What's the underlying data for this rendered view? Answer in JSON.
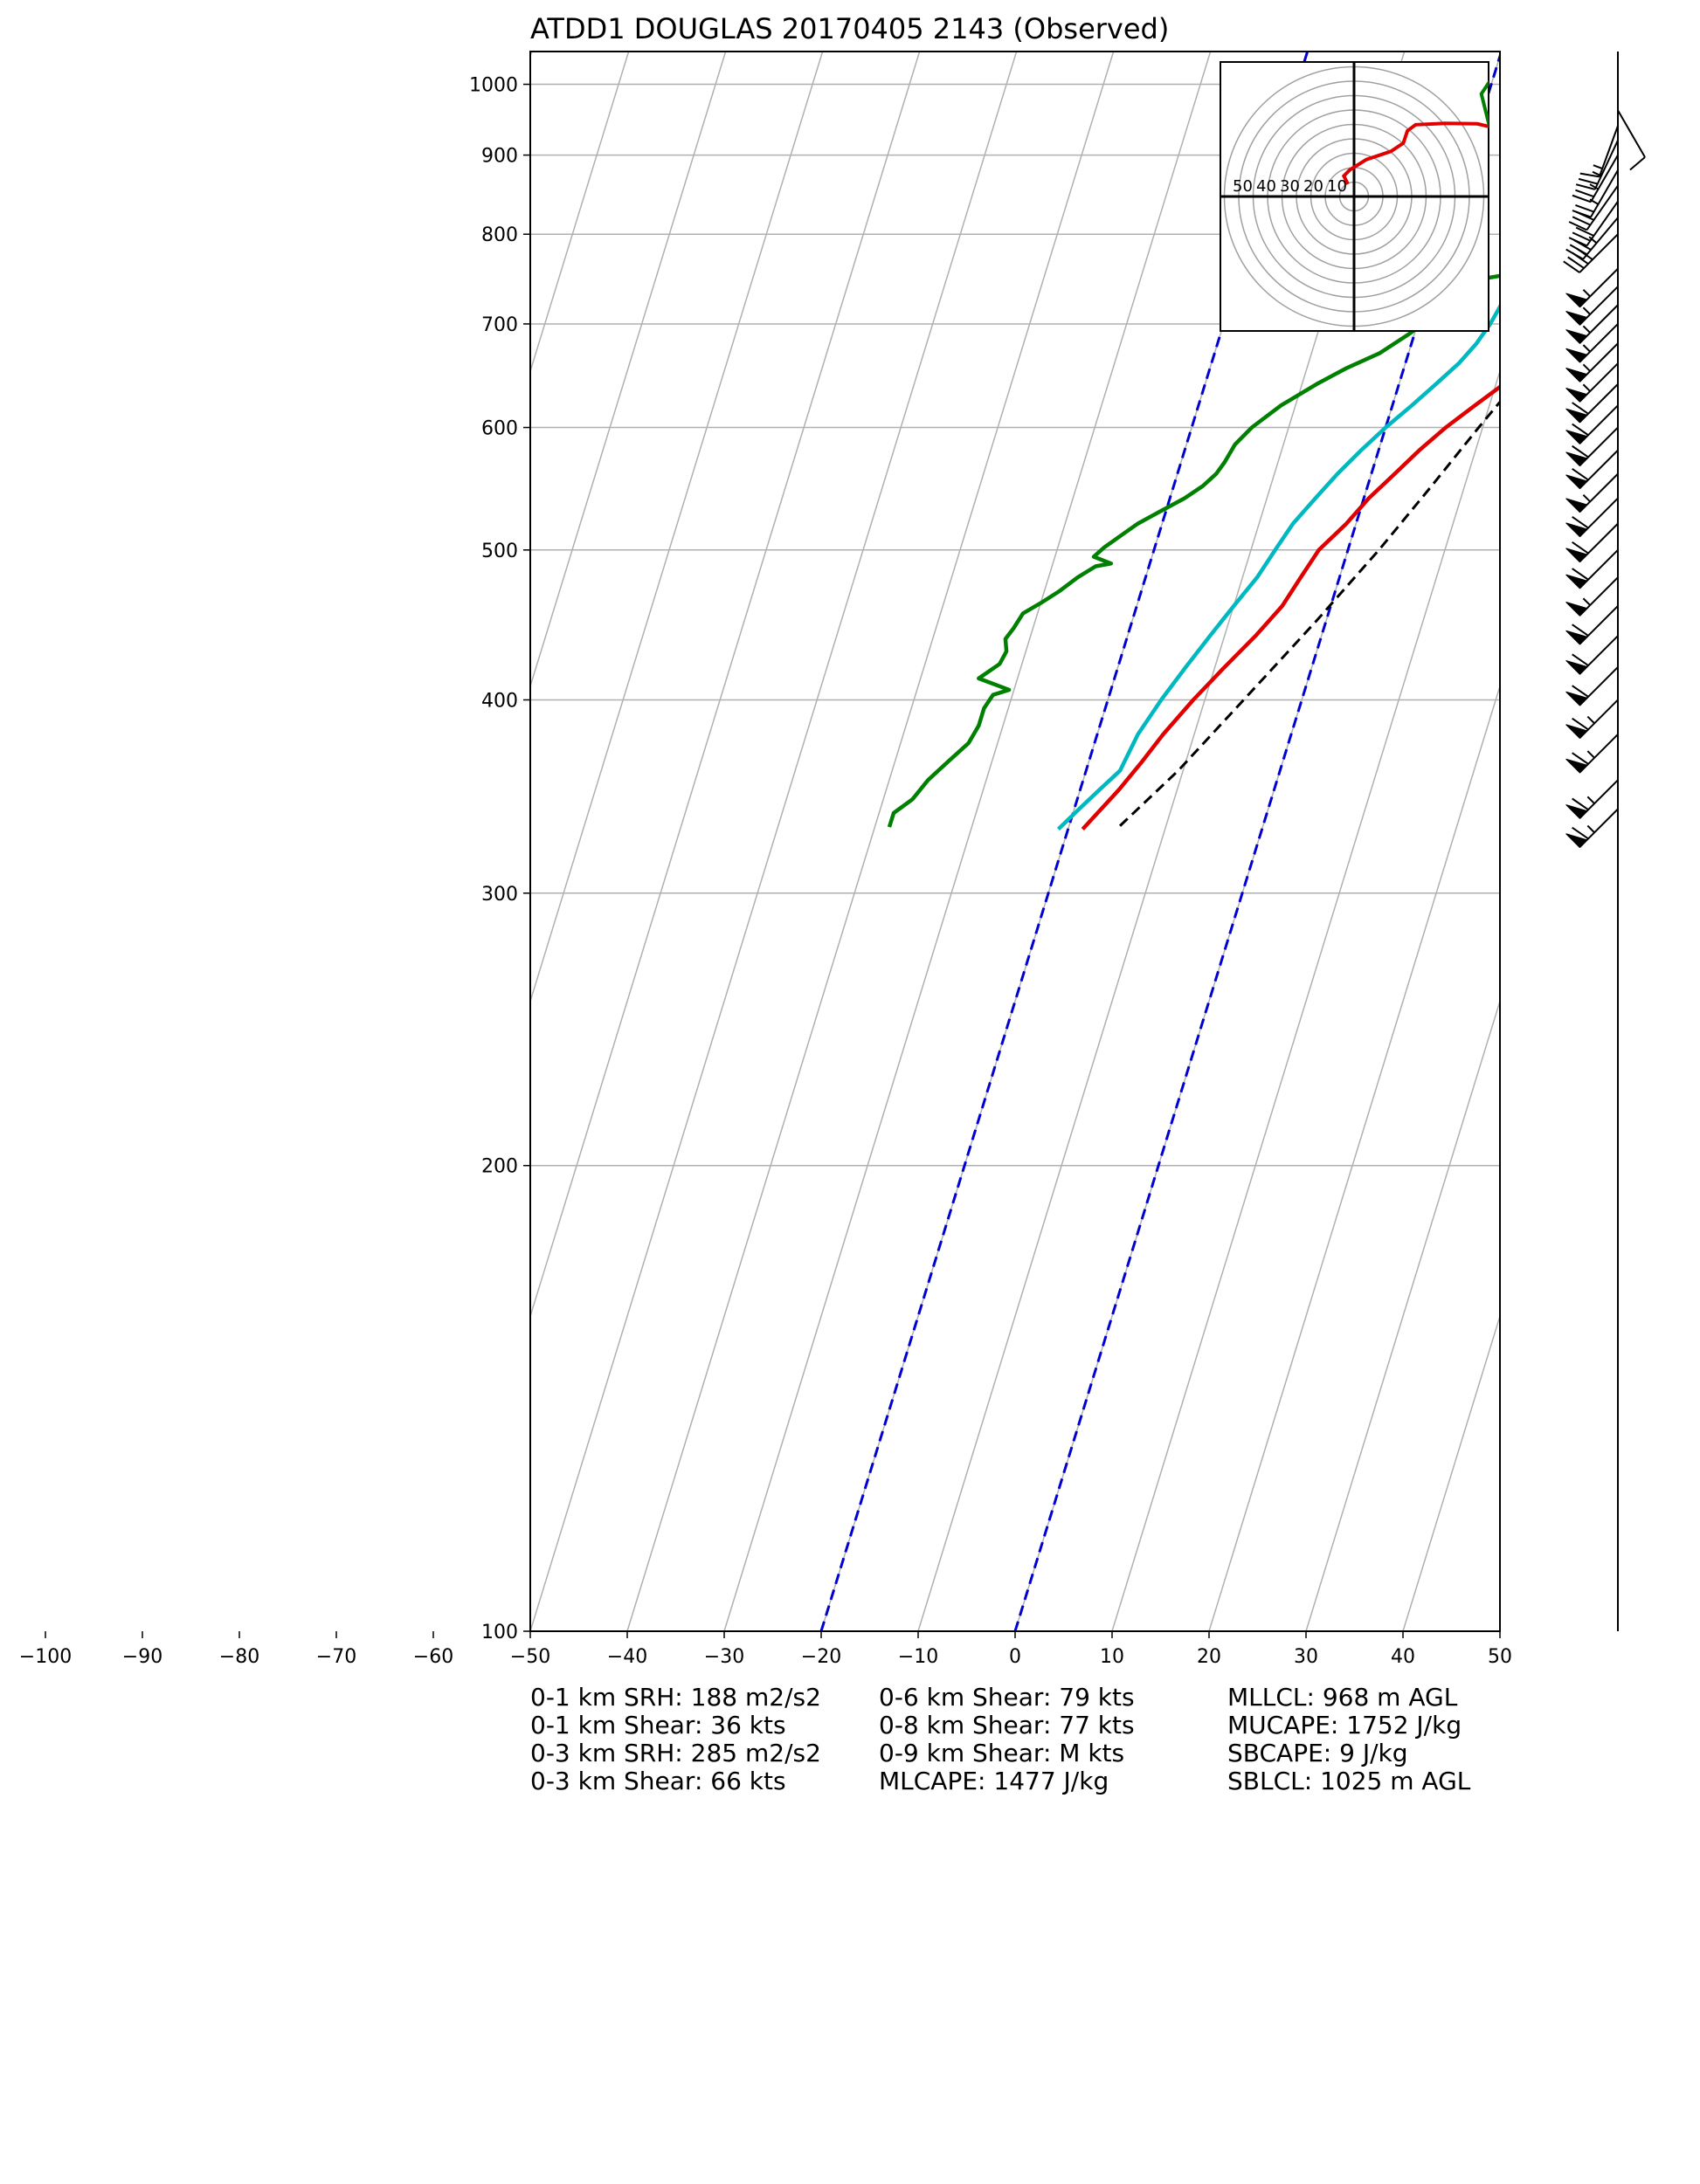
{
  "chart_data": {
    "type": "skew-t",
    "title": "ATDD1 DOUGLAS 20170405 2143   (Observed)",
    "x_ticks": [
      -100,
      -90,
      -80,
      -70,
      -60,
      -50,
      -40,
      -30,
      -20,
      -10,
      0,
      10,
      20,
      30,
      40,
      50
    ],
    "xlim": [
      -50,
      50
    ],
    "y_ticks": [
      100,
      200,
      300,
      400,
      500,
      600,
      700,
      800,
      900,
      1000
    ],
    "ylim": [
      1050,
      100
    ],
    "y_scale": "log",
    "grid": true,
    "series": [
      {
        "color": "#e00000",
        "style": "solid",
        "points": [
          [
            970,
            22.5
          ],
          [
            962,
            26
          ],
          [
            950,
            24
          ],
          [
            925,
            23
          ],
          [
            900,
            21.5
          ],
          [
            875,
            20
          ],
          [
            850,
            18.5
          ],
          [
            825,
            17
          ],
          [
            800,
            15.5
          ],
          [
            775,
            14
          ],
          [
            760,
            13.2
          ],
          [
            752,
            12
          ],
          [
            748,
            13
          ],
          [
            742,
            14.5
          ],
          [
            735,
            15
          ],
          [
            720,
            15
          ],
          [
            700,
            14
          ],
          [
            680,
            13.5
          ],
          [
            660,
            12.5
          ],
          [
            640,
            10.8
          ],
          [
            620,
            8.5
          ],
          [
            600,
            6.2
          ],
          [
            580,
            4.2
          ],
          [
            560,
            2.4
          ],
          [
            540,
            0.5
          ],
          [
            520,
            -1
          ],
          [
            500,
            -3
          ],
          [
            480,
            -4
          ],
          [
            460,
            -5
          ],
          [
            440,
            -6.8
          ],
          [
            420,
            -9
          ],
          [
            400,
            -11.2
          ],
          [
            380,
            -13.2
          ],
          [
            365,
            -14.5
          ],
          [
            350,
            -16
          ],
          [
            330,
            -18.5
          ]
        ]
      },
      {
        "color": "#e00000",
        "style": "dashed",
        "points": [
          [
            962,
            26
          ],
          [
            900,
            22
          ],
          [
            850,
            19
          ],
          [
            800,
            16.5
          ],
          [
            770,
            15.5
          ],
          [
            755,
            15
          ],
          [
            740,
            16
          ],
          [
            720,
            15.5
          ],
          [
            700,
            15
          ],
          [
            680,
            14
          ],
          [
            660,
            13
          ],
          [
            640,
            11
          ]
        ]
      },
      {
        "color": "#00b8c0",
        "style": "solid",
        "points": [
          [
            962,
            21.8
          ],
          [
            950,
            21
          ],
          [
            925,
            20.5
          ],
          [
            900,
            19.3
          ],
          [
            875,
            17.8
          ],
          [
            850,
            16.5
          ],
          [
            825,
            15.2
          ],
          [
            800,
            14
          ],
          [
            775,
            13
          ],
          [
            755,
            12.2
          ],
          [
            748,
            8.5
          ],
          [
            740,
            8
          ],
          [
            720,
            8
          ],
          [
            700,
            7.5
          ],
          [
            680,
            6.7
          ],
          [
            660,
            5.5
          ],
          [
            640,
            3.8
          ],
          [
            620,
            2
          ],
          [
            600,
            0
          ],
          [
            580,
            -1.8
          ],
          [
            560,
            -3.5
          ],
          [
            540,
            -5
          ],
          [
            520,
            -6.5
          ],
          [
            500,
            -7.5
          ],
          [
            480,
            -8.5
          ],
          [
            460,
            -10
          ],
          [
            440,
            -11.5
          ],
          [
            420,
            -13
          ],
          [
            400,
            -14.5
          ],
          [
            380,
            -15.8
          ],
          [
            360,
            -16.5
          ],
          [
            350,
            -18
          ],
          [
            340,
            -19.5
          ],
          [
            330,
            -21
          ]
        ]
      },
      {
        "color": "#008000",
        "style": "solid",
        "points": [
          [
            965,
            15
          ],
          [
            962,
            19
          ],
          [
            960,
            20
          ],
          [
            950,
            20
          ],
          [
            925,
            19.5
          ],
          [
            900,
            18.3
          ],
          [
            880,
            16.8
          ],
          [
            860,
            15.5
          ],
          [
            840,
            14.5
          ],
          [
            820,
            13.5
          ],
          [
            800,
            12.7
          ],
          [
            780,
            12.2
          ],
          [
            760,
            11.8
          ],
          [
            752,
            7
          ],
          [
            748,
            5
          ],
          [
            740,
            3
          ],
          [
            725,
            0.5
          ],
          [
            712,
            -0.5
          ],
          [
            700,
            0.5
          ],
          [
            690,
            -0.5
          ],
          [
            670,
            -3
          ],
          [
            655,
            -6
          ],
          [
            640,
            -8.5
          ],
          [
            620,
            -11.5
          ],
          [
            600,
            -13.8
          ],
          [
            585,
            -15
          ],
          [
            570,
            -15.5
          ],
          [
            560,
            -16
          ],
          [
            550,
            -17
          ],
          [
            540,
            -18.5
          ],
          [
            530,
            -20.5
          ],
          [
            520,
            -22.5
          ],
          [
            510,
            -24
          ],
          [
            502,
            -25.2
          ],
          [
            495,
            -26
          ],
          [
            490,
            -24
          ],
          [
            488,
            -25.5
          ],
          [
            480,
            -27
          ],
          [
            470,
            -28.5
          ],
          [
            462,
            -30
          ],
          [
            455,
            -31.5
          ],
          [
            445,
            -32
          ],
          [
            438,
            -32.5
          ],
          [
            430,
            -32
          ],
          [
            422,
            -32.3
          ],
          [
            413,
            -34
          ],
          [
            408,
            -31.5
          ],
          [
            406,
            -30.5
          ],
          [
            403,
            -32
          ],
          [
            395,
            -32.5
          ],
          [
            385,
            -32.5
          ],
          [
            375,
            -33
          ],
          [
            365,
            -34.5
          ],
          [
            355,
            -36
          ],
          [
            345,
            -37
          ],
          [
            338,
            -38.5
          ],
          [
            331,
            -38.5
          ]
        ]
      },
      {
        "color": "#000000",
        "style": "dashed",
        "points": [
          [
            962,
            27.8
          ],
          [
            900,
            25
          ],
          [
            850,
            22
          ],
          [
            800,
            19.5
          ],
          [
            750,
            17.5
          ],
          [
            700,
            15
          ],
          [
            650,
            12.5
          ],
          [
            600,
            9.6
          ],
          [
            550,
            6.6
          ],
          [
            500,
            3.2
          ],
          [
            450,
            -1
          ],
          [
            400,
            -6
          ],
          [
            360,
            -10.5
          ],
          [
            330,
            -15
          ]
        ]
      }
    ],
    "annotations": [
      [
        "0-1 km SRH: 188 m2/s2",
        "0-1 km Shear: 36 kts",
        "0-3 km SRH: 285 m2/s2",
        "0-3 km Shear: 66 kts"
      ],
      [
        "0-6 km Shear: 79 kts",
        "0-8 km Shear: 77 kts",
        "0-9 km Shear: M kts",
        "MLCAPE: 1477 J/kg"
      ],
      [
        "MLLCL: 968 m AGL",
        "MUCAPE: 1752 J/kg",
        "SBCAPE: 9 J/kg",
        "SBLCL: 1025 m AGL"
      ]
    ],
    "hodograph": {
      "ring_labels": [
        "50",
        "40",
        "30",
        "20",
        "10"
      ],
      "red_trace": [
        [
          -1.5,
          3
        ],
        [
          -2.5,
          5
        ],
        [
          -1,
          6.5
        ],
        [
          3,
          9
        ],
        [
          9,
          11
        ],
        [
          12,
          13
        ],
        [
          13,
          16
        ],
        [
          15,
          17.5
        ],
        [
          22,
          17.8
        ],
        [
          30,
          17.7
        ],
        [
          33,
          17
        ]
      ],
      "green_trace": [
        [
          33,
          17
        ],
        [
          32,
          21
        ],
        [
          31,
          25
        ],
        [
          33,
          28
        ],
        [
          35,
          28
        ]
      ]
    },
    "wind_barbs": [
      {
        "p": 962,
        "dir": 150,
        "spd": 10
      },
      {
        "p": 940,
        "dir": 200,
        "spd": 15
      },
      {
        "p": 920,
        "dir": 205,
        "spd": 25
      },
      {
        "p": 900,
        "dir": 210,
        "spd": 25
      },
      {
        "p": 880,
        "dir": 210,
        "spd": 25
      },
      {
        "p": 860,
        "dir": 215,
        "spd": 30
      },
      {
        "p": 840,
        "dir": 215,
        "spd": 30
      },
      {
        "p": 820,
        "dir": 220,
        "spd": 35
      },
      {
        "p": 800,
        "dir": 225,
        "spd": 40
      },
      {
        "p": 760,
        "dir": 225,
        "spd": 55
      },
      {
        "p": 740,
        "dir": 225,
        "spd": 55
      },
      {
        "p": 720,
        "dir": 225,
        "spd": 55
      },
      {
        "p": 700,
        "dir": 225,
        "spd": 55
      },
      {
        "p": 680,
        "dir": 225,
        "spd": 55
      },
      {
        "p": 660,
        "dir": 225,
        "spd": 55
      },
      {
        "p": 640,
        "dir": 225,
        "spd": 60
      },
      {
        "p": 620,
        "dir": 225,
        "spd": 60
      },
      {
        "p": 600,
        "dir": 225,
        "spd": 60
      },
      {
        "p": 580,
        "dir": 225,
        "spd": 60
      },
      {
        "p": 560,
        "dir": 225,
        "spd": 55
      },
      {
        "p": 540,
        "dir": 225,
        "spd": 60
      },
      {
        "p": 520,
        "dir": 225,
        "spd": 60
      },
      {
        "p": 500,
        "dir": 225,
        "spd": 60
      },
      {
        "p": 480,
        "dir": 225,
        "spd": 55
      },
      {
        "p": 460,
        "dir": 225,
        "spd": 60
      },
      {
        "p": 440,
        "dir": 225,
        "spd": 60
      },
      {
        "p": 420,
        "dir": 225,
        "spd": 60
      },
      {
        "p": 400,
        "dir": 225,
        "spd": 65
      },
      {
        "p": 380,
        "dir": 225,
        "spd": 65
      },
      {
        "p": 355,
        "dir": 225,
        "spd": 65
      },
      {
        "p": 340,
        "dir": 225,
        "spd": 65
      }
    ]
  }
}
